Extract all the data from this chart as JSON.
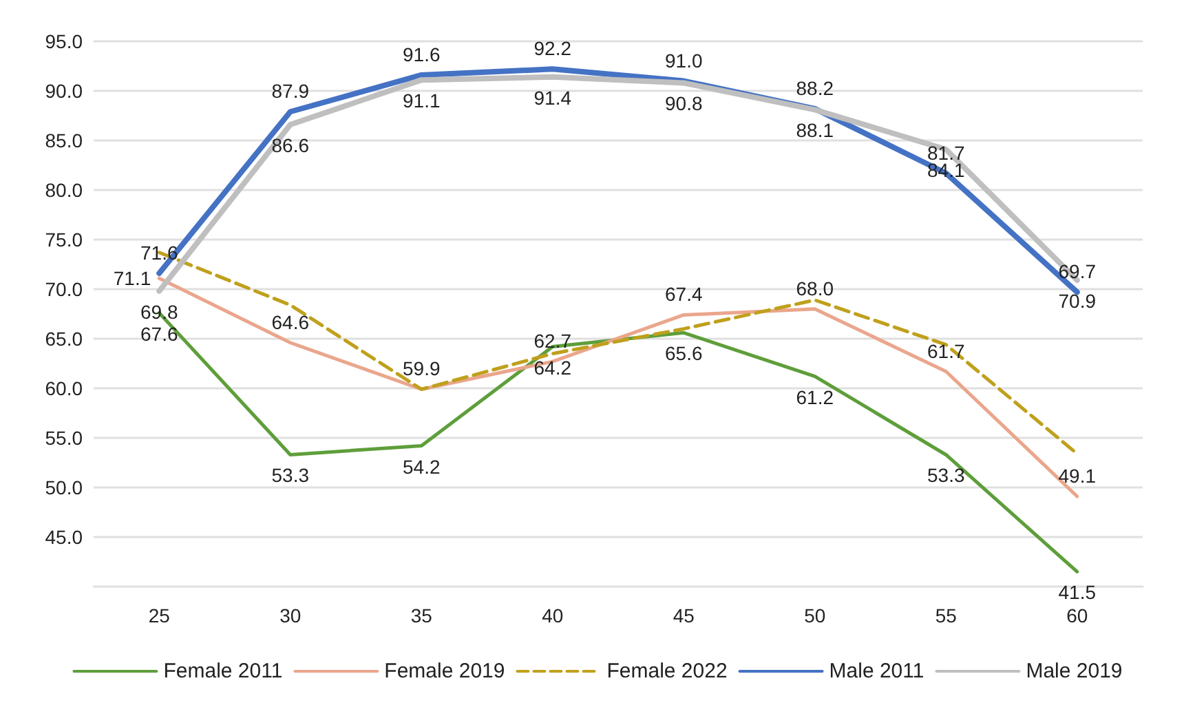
{
  "chart_data": {
    "type": "line",
    "categories": [
      "25",
      "30",
      "35",
      "40",
      "45",
      "50",
      "55",
      "60"
    ],
    "ylim": [
      40,
      95
    ],
    "yticks": [
      "45.0",
      "50.0",
      "55.0",
      "60.0",
      "65.0",
      "70.0",
      "75.0",
      "80.0",
      "85.0",
      "90.0",
      "95.0"
    ],
    "grid": "y",
    "legend": "bottom",
    "marker": "none",
    "series": [
      {
        "name": "Female 2011",
        "color": "#5e9e3a",
        "line_style": "solid",
        "values": [
          67.6,
          53.3,
          54.2,
          64.2,
          65.6,
          61.2,
          53.3,
          41.5
        ],
        "value_labels": [
          "67.6",
          "53.3",
          "54.2",
          "64.2",
          "65.6",
          "61.2",
          "53.3",
          "41.5"
        ]
      },
      {
        "name": "Female 2019",
        "color": "#eaa68c",
        "line_style": "solid",
        "values": [
          71.1,
          64.6,
          59.9,
          62.7,
          67.4,
          68.0,
          61.7,
          49.1
        ],
        "value_labels": [
          "71.1",
          "64.6",
          "59.9",
          "62.7",
          "67.4",
          "68.0",
          "61.7",
          "49.1"
        ]
      },
      {
        "name": "Female 2022",
        "color": "#c0a01c",
        "line_style": "dashed",
        "values": [
          73.7,
          68.4,
          59.9,
          63.5,
          66.0,
          68.9,
          64.4,
          53.4
        ]
      },
      {
        "name": "Male 2011",
        "color": "#4472c4",
        "line_style": "solid",
        "values": [
          71.6,
          87.9,
          91.6,
          92.2,
          91.0,
          88.2,
          81.7,
          69.7
        ],
        "value_labels": [
          "71.6",
          "87.9",
          "91.6",
          "92.2",
          "91.0",
          "88.2",
          "81.7",
          "69.7"
        ]
      },
      {
        "name": "Male 2019",
        "color": "#bfbfbf",
        "line_style": "solid",
        "values": [
          69.8,
          86.6,
          91.1,
          91.4,
          90.8,
          88.1,
          84.1,
          70.9
        ],
        "value_labels": [
          "69.8",
          "86.6",
          "91.1",
          "91.4",
          "90.8",
          "88.1",
          "84.1",
          "70.9"
        ]
      }
    ]
  }
}
